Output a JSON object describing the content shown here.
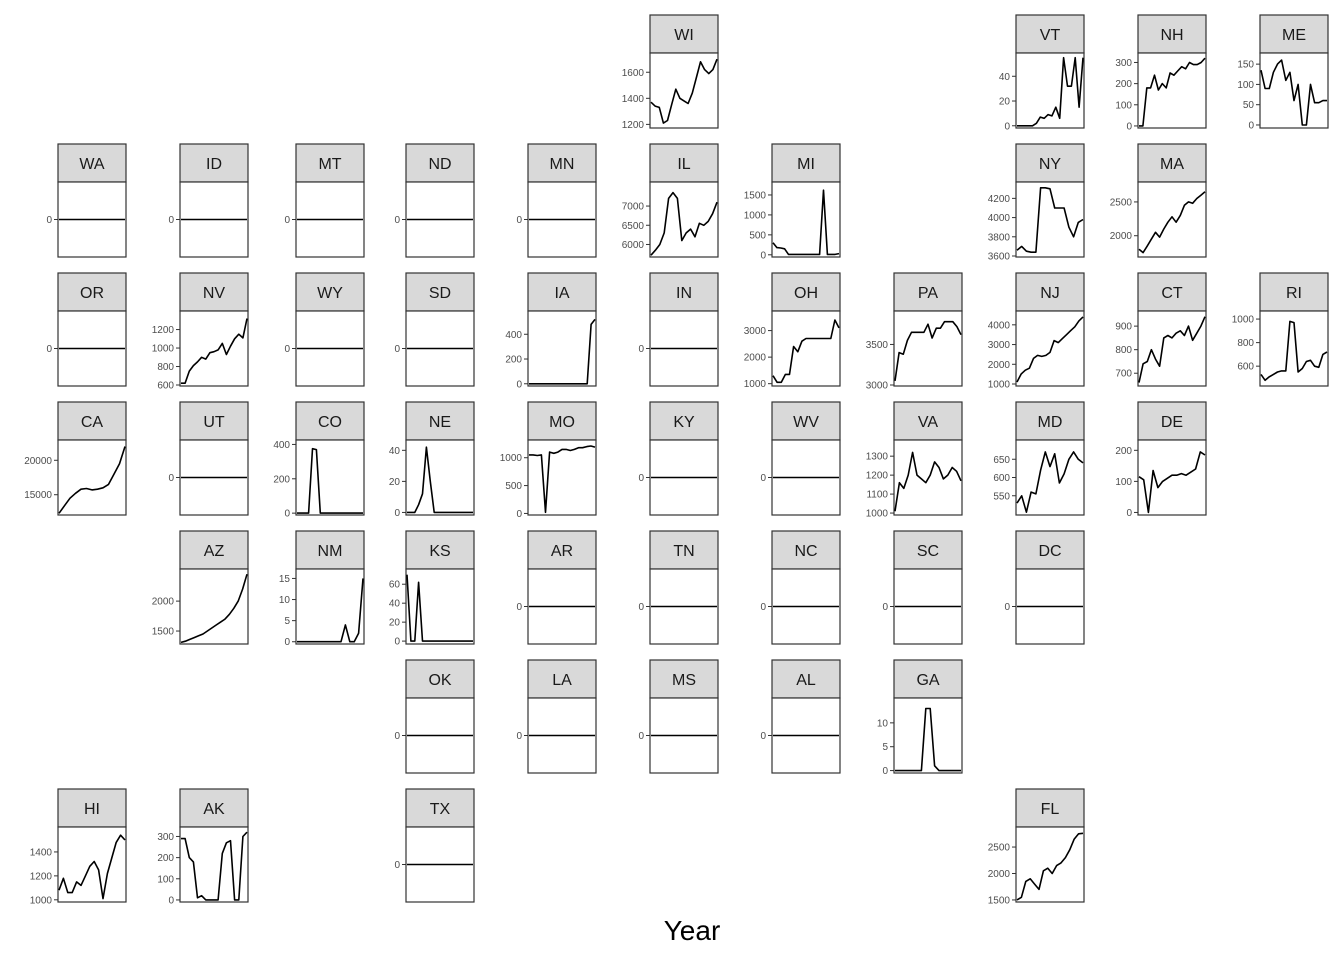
{
  "chart_data": {
    "type": "line",
    "layout": "geofacet-us-states",
    "xlabel": "Year",
    "ylabel": "",
    "grid": false,
    "n_points": 20,
    "panels": [
      {
        "state": "WI",
        "row": 0,
        "col": 5,
        "ticks": [
          1200,
          1400,
          1600
        ],
        "ylim": [
          1180,
          1740
        ],
        "values": [
          1370,
          1340,
          1330,
          1210,
          1230,
          1350,
          1470,
          1400,
          1380,
          1360,
          1440,
          1560,
          1680,
          1620,
          1590,
          1620,
          1700
        ]
      },
      {
        "state": "VT",
        "row": 0,
        "col": 8,
        "ticks": [
          0,
          20,
          40
        ],
        "ylim": [
          -1,
          58
        ],
        "values": [
          0,
          0,
          0,
          0,
          0,
          2,
          7,
          6,
          9,
          8,
          15,
          6,
          55,
          32,
          32,
          55,
          15,
          55
        ]
      },
      {
        "state": "NH",
        "row": 0,
        "col": 9,
        "ticks": [
          0,
          100,
          200,
          300
        ],
        "ylim": [
          -5,
          340
        ],
        "values": [
          0,
          0,
          180,
          180,
          240,
          170,
          200,
          180,
          250,
          240,
          260,
          280,
          270,
          300,
          290,
          290,
          300,
          320
        ]
      },
      {
        "state": "ME",
        "row": 0,
        "col": 10,
        "ticks": [
          0,
          50,
          100,
          150
        ],
        "ylim": [
          -5,
          175
        ],
        "values": [
          135,
          90,
          90,
          130,
          150,
          160,
          110,
          130,
          60,
          100,
          0,
          0,
          100,
          55,
          55,
          60,
          60
        ]
      },
      {
        "state": "WA",
        "row": 1,
        "col": 0,
        "ticks": [
          0
        ],
        "ylim": [
          -1,
          1
        ],
        "values": [
          0,
          0
        ]
      },
      {
        "state": "ID",
        "row": 1,
        "col": 1,
        "ticks": [
          0
        ],
        "ylim": [
          -1,
          1
        ],
        "values": [
          0,
          0
        ]
      },
      {
        "state": "MT",
        "row": 1,
        "col": 2,
        "ticks": [
          0
        ],
        "ylim": [
          -1,
          1
        ],
        "values": [
          0,
          0
        ]
      },
      {
        "state": "ND",
        "row": 1,
        "col": 3,
        "ticks": [
          0
        ],
        "ylim": [
          -1,
          1
        ],
        "values": [
          0,
          0
        ]
      },
      {
        "state": "MN",
        "row": 1,
        "col": 4,
        "ticks": [
          0
        ],
        "ylim": [
          -1,
          1
        ],
        "values": [
          0,
          0
        ]
      },
      {
        "state": "IL",
        "row": 1,
        "col": 5,
        "ticks": [
          6000,
          6500,
          7000
        ],
        "ylim": [
          5700,
          7600
        ],
        "values": [
          5720,
          5850,
          6000,
          6300,
          7200,
          7350,
          7200,
          6100,
          6300,
          6400,
          6200,
          6550,
          6500,
          6600,
          6800,
          7100
        ]
      },
      {
        "state": "MI",
        "row": 1,
        "col": 6,
        "ticks": [
          0,
          500,
          1000,
          1500
        ],
        "ylim": [
          -30,
          1800
        ],
        "values": [
          300,
          180,
          170,
          150,
          10,
          10,
          10,
          10,
          10,
          10,
          10,
          10,
          10,
          1620,
          10,
          10,
          10,
          30
        ]
      },
      {
        "state": "NY",
        "row": 1,
        "col": 8,
        "ticks": [
          3600,
          3800,
          4000,
          4200
        ],
        "ylim": [
          3600,
          4360
        ],
        "values": [
          3660,
          3700,
          3650,
          3640,
          3640,
          4310,
          4310,
          4300,
          4100,
          4100,
          4100,
          3900,
          3800,
          3950,
          3980
        ]
      },
      {
        "state": "MA",
        "row": 1,
        "col": 9,
        "ticks": [
          2000,
          2500
        ],
        "ylim": [
          1700,
          2780
        ],
        "values": [
          1800,
          1750,
          1850,
          1950,
          2050,
          1980,
          2100,
          2200,
          2280,
          2200,
          2300,
          2450,
          2500,
          2480,
          2550,
          2600,
          2650
        ]
      },
      {
        "state": "OR",
        "row": 2,
        "col": 0,
        "ticks": [
          0
        ],
        "ylim": [
          -1,
          1
        ],
        "values": [
          0,
          0
        ]
      },
      {
        "state": "NV",
        "row": 2,
        "col": 1,
        "ticks": [
          600,
          800,
          1000,
          1200
        ],
        "ylim": [
          600,
          1390
        ],
        "values": [
          620,
          620,
          750,
          810,
          850,
          900,
          880,
          950,
          960,
          980,
          1050,
          930,
          1020,
          1100,
          1150,
          1110,
          1320
        ]
      },
      {
        "state": "WY",
        "row": 2,
        "col": 2,
        "ticks": [
          0
        ],
        "ylim": [
          -1,
          1
        ],
        "values": [
          0,
          0
        ]
      },
      {
        "state": "SD",
        "row": 2,
        "col": 3,
        "ticks": [
          0
        ],
        "ylim": [
          -1,
          1
        ],
        "values": [
          0,
          0
        ]
      },
      {
        "state": "IA",
        "row": 2,
        "col": 4,
        "ticks": [
          0,
          200,
          400
        ],
        "ylim": [
          -10,
          580
        ],
        "values": [
          0,
          0,
          0,
          0,
          0,
          0,
          0,
          0,
          0,
          0,
          0,
          0,
          0,
          0,
          0,
          0,
          480,
          520
        ]
      },
      {
        "state": "IN",
        "row": 2,
        "col": 5,
        "ticks": [
          0
        ],
        "ylim": [
          -1,
          1
        ],
        "values": [
          0,
          0
        ]
      },
      {
        "state": "OH",
        "row": 2,
        "col": 6,
        "ticks": [
          1000,
          2000,
          3000
        ],
        "ylim": [
          950,
          3700
        ],
        "values": [
          1300,
          1050,
          1050,
          1350,
          1350,
          2400,
          2200,
          2600,
          2700,
          2700,
          2700,
          2700,
          2700,
          2700,
          2700,
          3400,
          3100
        ]
      },
      {
        "state": "PA",
        "row": 2,
        "col": 7,
        "ticks": [
          3000,
          3500
        ],
        "ylim": [
          3000,
          3900
        ],
        "values": [
          3050,
          3400,
          3380,
          3550,
          3650,
          3650,
          3650,
          3650,
          3750,
          3580,
          3700,
          3700,
          3780,
          3780,
          3780,
          3720,
          3620
        ]
      },
      {
        "state": "NJ",
        "row": 2,
        "col": 8,
        "ticks": [
          1000,
          2000,
          3000,
          4000
        ],
        "ylim": [
          950,
          4650
        ],
        "values": [
          1100,
          1500,
          1700,
          1800,
          2300,
          2450,
          2400,
          2450,
          2600,
          3200,
          3100,
          3300,
          3500,
          3700,
          3900,
          4200,
          4400
        ]
      },
      {
        "state": "CT",
        "row": 2,
        "col": 9,
        "ticks": [
          700,
          800,
          900
        ],
        "ylim": [
          650,
          960
        ],
        "values": [
          660,
          740,
          750,
          800,
          760,
          730,
          850,
          860,
          850,
          870,
          880,
          860,
          900,
          840,
          870,
          900,
          940
        ]
      },
      {
        "state": "RI",
        "row": 2,
        "col": 10,
        "ticks": [
          600,
          800,
          1000
        ],
        "ylim": [
          440,
          1060
        ],
        "values": [
          530,
          480,
          510,
          530,
          550,
          560,
          560,
          980,
          970,
          550,
          580,
          640,
          650,
          600,
          590,
          700,
          720
        ]
      },
      {
        "state": "CA",
        "row": 3,
        "col": 0,
        "ticks": [
          15000,
          20000
        ],
        "ylim": [
          12200,
          22800
        ],
        "values": [
          12300,
          13400,
          14500,
          15200,
          15800,
          15900,
          15700,
          15800,
          16000,
          16500,
          18000,
          19500,
          22000
        ]
      },
      {
        "state": "UT",
        "row": 3,
        "col": 1,
        "ticks": [
          0
        ],
        "ylim": [
          -1,
          1
        ],
        "values": [
          0,
          0
        ]
      },
      {
        "state": "CO",
        "row": 3,
        "col": 2,
        "ticks": [
          0,
          200,
          400
        ],
        "ylim": [
          -5,
          420
        ],
        "values": [
          0,
          0,
          0,
          0,
          375,
          370,
          0,
          0,
          0,
          0,
          0,
          0,
          0,
          0,
          0,
          0,
          0,
          0
        ]
      },
      {
        "state": "NE",
        "row": 3,
        "col": 3,
        "ticks": [
          0,
          20,
          40
        ],
        "ylim": [
          -1,
          46
        ],
        "values": [
          0,
          0,
          0,
          5,
          12,
          42,
          20,
          0,
          0,
          0,
          0,
          0,
          0,
          0,
          0,
          0,
          0,
          0
        ]
      },
      {
        "state": "MO",
        "row": 3,
        "col": 4,
        "ticks": [
          0,
          500,
          1000
        ],
        "ylim": [
          -10,
          1300
        ],
        "values": [
          1050,
          1050,
          1040,
          1050,
          20,
          1100,
          1080,
          1100,
          1150,
          1150,
          1130,
          1150,
          1180,
          1180,
          1200,
          1210,
          1190
        ]
      },
      {
        "state": "KY",
        "row": 3,
        "col": 5,
        "ticks": [
          0
        ],
        "ylim": [
          -1,
          1
        ],
        "values": [
          0,
          0
        ]
      },
      {
        "state": "WV",
        "row": 3,
        "col": 6,
        "ticks": [
          0
        ],
        "ylim": [
          -1,
          1
        ],
        "values": [
          0,
          0
        ]
      },
      {
        "state": "VA",
        "row": 3,
        "col": 7,
        "ticks": [
          1000,
          1100,
          1200,
          1300
        ],
        "ylim": [
          995,
          1380
        ],
        "values": [
          1010,
          1160,
          1130,
          1200,
          1320,
          1200,
          1180,
          1160,
          1200,
          1270,
          1240,
          1180,
          1200,
          1240,
          1220,
          1170
        ]
      },
      {
        "state": "MD",
        "row": 3,
        "col": 8,
        "ticks": [
          550,
          600,
          650
        ],
        "ylim": [
          500,
          700
        ],
        "values": [
          530,
          550,
          505,
          560,
          555,
          620,
          670,
          630,
          665,
          585,
          610,
          650,
          670,
          650,
          640
        ]
      },
      {
        "state": "DE",
        "row": 3,
        "col": 9,
        "ticks": [
          0,
          100,
          200
        ],
        "ylim": [
          -5,
          230
        ],
        "values": [
          115,
          105,
          0,
          135,
          80,
          100,
          110,
          120,
          120,
          125,
          120,
          130,
          140,
          195,
          185
        ]
      },
      {
        "state": "AZ",
        "row": 4,
        "col": 1,
        "ticks": [
          1500,
          2000
        ],
        "ylim": [
          1300,
          2520
        ],
        "values": [
          1310,
          1330,
          1360,
          1390,
          1420,
          1450,
          1500,
          1550,
          1600,
          1650,
          1700,
          1780,
          1880,
          2000,
          2200,
          2450
        ]
      },
      {
        "state": "NM",
        "row": 4,
        "col": 2,
        "ticks": [
          0,
          5,
          10,
          15
        ],
        "ylim": [
          -0.3,
          17
        ],
        "values": [
          0,
          0,
          0,
          0,
          0,
          0,
          0,
          0,
          0,
          0,
          0,
          4,
          0,
          0,
          2,
          15
        ]
      },
      {
        "state": "KS",
        "row": 4,
        "col": 3,
        "ticks": [
          0,
          20,
          40,
          60
        ],
        "ylim": [
          -2,
          75
        ],
        "values": [
          70,
          0,
          0,
          62,
          0,
          0,
          0,
          0,
          0,
          0,
          0,
          0,
          0,
          0,
          0,
          0,
          0,
          0
        ]
      },
      {
        "state": "AR",
        "row": 4,
        "col": 4,
        "ticks": [
          0
        ],
        "ylim": [
          -1,
          1
        ],
        "values": [
          0,
          0
        ]
      },
      {
        "state": "TN",
        "row": 4,
        "col": 5,
        "ticks": [
          0
        ],
        "ylim": [
          -1,
          1
        ],
        "values": [
          0,
          0
        ]
      },
      {
        "state": "NC",
        "row": 4,
        "col": 6,
        "ticks": [
          0
        ],
        "ylim": [
          -1,
          1
        ],
        "values": [
          0,
          0
        ]
      },
      {
        "state": "SC",
        "row": 4,
        "col": 7,
        "ticks": [
          0
        ],
        "ylim": [
          -1,
          1
        ],
        "values": [
          0,
          0
        ]
      },
      {
        "state": "DC",
        "row": 4,
        "col": 8,
        "ticks": [
          0
        ],
        "ylim": [
          -1,
          1
        ],
        "values": [
          0,
          0
        ]
      },
      {
        "state": "OK",
        "row": 5,
        "col": 3,
        "ticks": [
          0
        ],
        "ylim": [
          -1,
          1
        ],
        "values": [
          0,
          0
        ]
      },
      {
        "state": "LA",
        "row": 5,
        "col": 4,
        "ticks": [
          0
        ],
        "ylim": [
          -1,
          1
        ],
        "values": [
          0,
          0
        ]
      },
      {
        "state": "MS",
        "row": 5,
        "col": 5,
        "ticks": [
          0
        ],
        "ylim": [
          -1,
          1
        ],
        "values": [
          0,
          0
        ]
      },
      {
        "state": "AL",
        "row": 5,
        "col": 6,
        "ticks": [
          0
        ],
        "ylim": [
          -1,
          1
        ],
        "values": [
          0,
          0
        ]
      },
      {
        "state": "GA",
        "row": 5,
        "col": 7,
        "ticks": [
          0,
          5,
          10
        ],
        "ylim": [
          -0.3,
          15
        ],
        "values": [
          0,
          0,
          0,
          0,
          0,
          0,
          0,
          13,
          13,
          1,
          0,
          0,
          0,
          0,
          0,
          0
        ]
      },
      {
        "state": "HI",
        "row": 6,
        "col": 0,
        "ticks": [
          1000,
          1200,
          1400
        ],
        "ylim": [
          990,
          1600
        ],
        "values": [
          1080,
          1180,
          1060,
          1060,
          1150,
          1120,
          1200,
          1280,
          1320,
          1250,
          1010,
          1220,
          1350,
          1480,
          1540,
          1500
        ]
      },
      {
        "state": "AK",
        "row": 6,
        "col": 1,
        "ticks": [
          0,
          100,
          200,
          300
        ],
        "ylim": [
          -5,
          340
        ],
        "values": [
          290,
          290,
          200,
          180,
          10,
          20,
          0,
          0,
          0,
          0,
          220,
          270,
          280,
          0,
          0,
          300,
          320
        ]
      },
      {
        "state": "TX",
        "row": 6,
        "col": 3,
        "ticks": [
          0
        ],
        "ylim": [
          -1,
          1
        ],
        "values": [
          0,
          0
        ]
      },
      {
        "state": "FL",
        "row": 6,
        "col": 8,
        "ticks": [
          1500,
          2000,
          2500
        ],
        "ylim": [
          1480,
          2860
        ],
        "values": [
          1500,
          1550,
          1850,
          1900,
          1800,
          1700,
          2050,
          2100,
          2000,
          2150,
          2200,
          2300,
          2450,
          2650,
          2750,
          2760
        ]
      }
    ]
  }
}
